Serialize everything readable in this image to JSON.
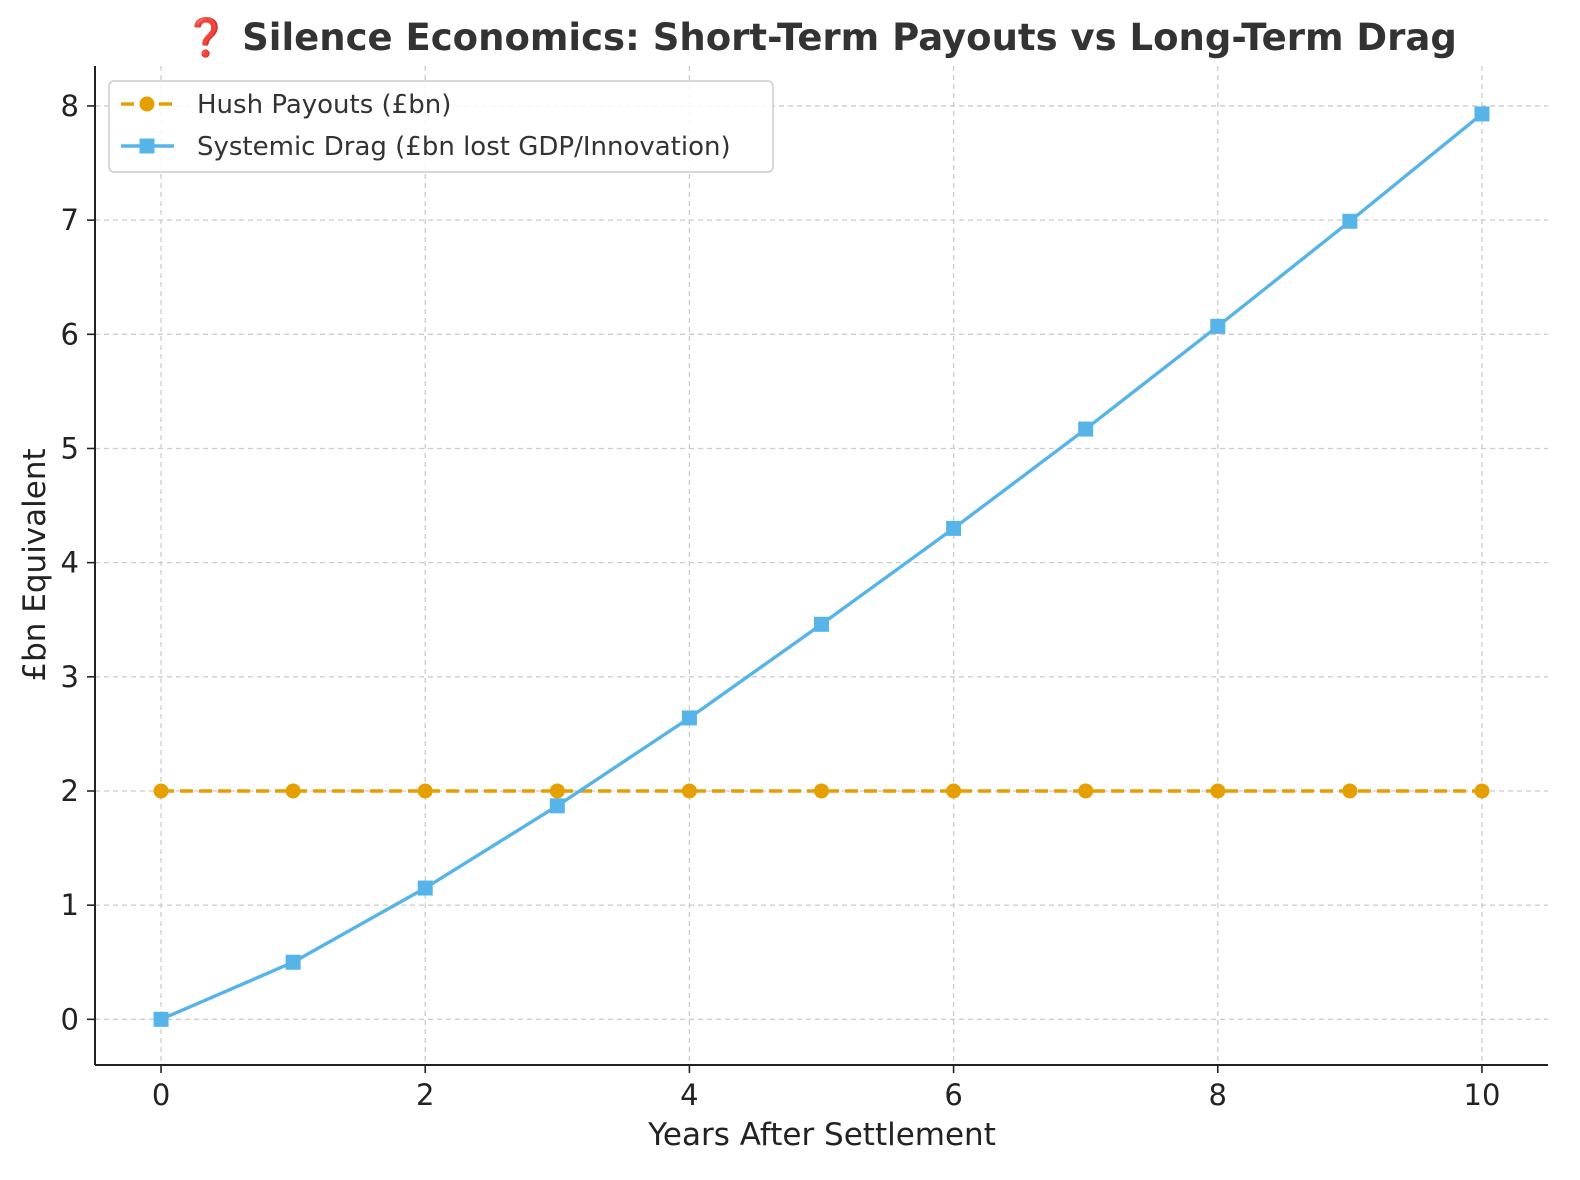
{
  "chart_data": {
    "type": "line",
    "title": "❓ Silence Economics: Short-Term Payouts vs Long-Term Drag",
    "xlabel": "Years After Settlement",
    "ylabel": "£bn Equivalent",
    "x": [
      0,
      1,
      2,
      3,
      4,
      5,
      6,
      7,
      8,
      9,
      10
    ],
    "xlim": [
      -0.5,
      10.5
    ],
    "ylim": [
      -0.4,
      8.35
    ],
    "x_ticks": [
      0,
      2,
      4,
      6,
      8,
      10
    ],
    "y_ticks": [
      0,
      1,
      2,
      3,
      4,
      5,
      6,
      7,
      8
    ],
    "grid": true,
    "legend_position": "top-left",
    "series": [
      {
        "name": "Hush Payouts (£bn)",
        "values": [
          2,
          2,
          2,
          2,
          2,
          2,
          2,
          2,
          2,
          2,
          2
        ],
        "color": "#E69F00",
        "line_style": "dashed",
        "marker": "circle"
      },
      {
        "name": "Systemic Drag (£bn lost GDP/Innovation)",
        "values": [
          0,
          0.5,
          1.15,
          1.87,
          2.64,
          3.46,
          4.3,
          5.17,
          6.07,
          6.99,
          7.93
        ],
        "color": "#56B4E9",
        "line_style": "solid",
        "marker": "square"
      }
    ]
  }
}
